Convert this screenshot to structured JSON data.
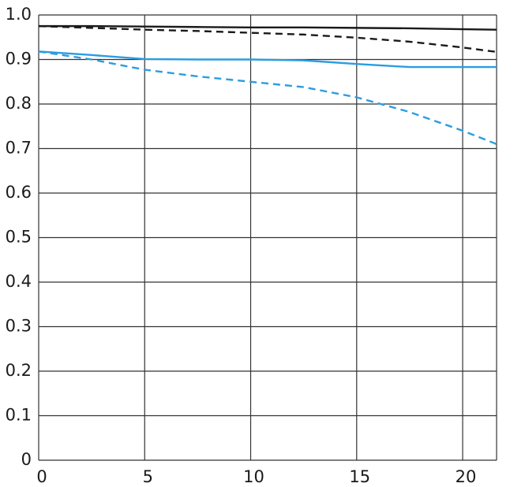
{
  "chart_data": {
    "type": "line",
    "x": [
      0,
      2.5,
      5,
      7.5,
      10,
      12.5,
      15,
      17.5,
      20,
      21.6
    ],
    "series": [
      {
        "color": "#1a1a1a",
        "dash": false,
        "values": [
          0.975,
          0.975,
          0.974,
          0.973,
          0.972,
          0.972,
          0.971,
          0.97,
          0.968,
          0.967
        ]
      },
      {
        "color": "#1a1a1a",
        "dash": true,
        "values": [
          0.975,
          0.971,
          0.967,
          0.964,
          0.96,
          0.956,
          0.949,
          0.94,
          0.927,
          0.917
        ]
      },
      {
        "color": "#2b9de0",
        "dash": false,
        "values": [
          0.918,
          0.91,
          0.901,
          0.9,
          0.9,
          0.898,
          0.89,
          0.883,
          0.883,
          0.883
        ]
      },
      {
        "color": "#2b9de0",
        "dash": true,
        "values": [
          0.918,
          0.9,
          0.877,
          0.862,
          0.85,
          0.838,
          0.815,
          0.782,
          0.74,
          0.71
        ]
      }
    ],
    "xlim": [
      0,
      21.6
    ],
    "xticks": [
      0,
      5,
      10,
      15,
      20
    ],
    "ylim": [
      0,
      1
    ],
    "yticks": [
      0,
      0.1,
      0.2,
      0.3,
      0.4,
      0.5,
      0.6,
      0.7,
      0.8,
      0.9,
      {
        "value": 1,
        "label": "1.0"
      }
    ],
    "grid": true
  }
}
